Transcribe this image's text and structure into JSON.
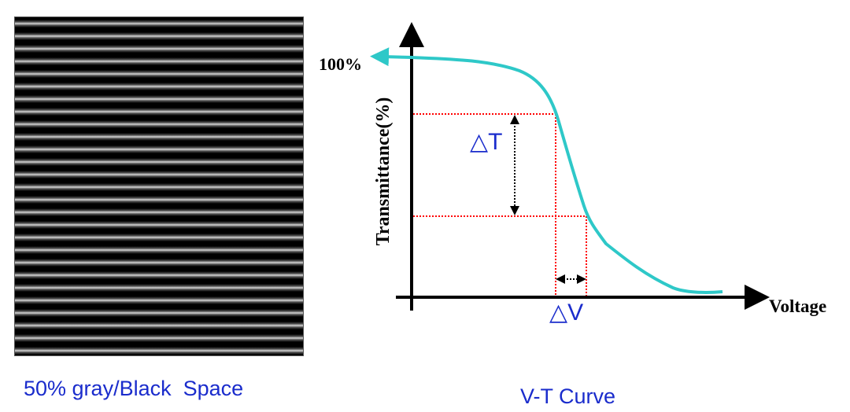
{
  "left_panel": {
    "pattern": "striped gray/black lines",
    "caption": "50% gray/Black  Space"
  },
  "right_panel": {
    "caption": "V-T Curve",
    "y_axis_label": "Transmittance(%)",
    "x_axis_label": "Voltage",
    "top_label": "100%",
    "delta_t_label": "△T",
    "delta_v_label": "△V",
    "colors": {
      "curve": "#2ec8c8",
      "guides": "#ff0000",
      "labels": "#1a2ccc",
      "axes": "#000000"
    }
  }
}
